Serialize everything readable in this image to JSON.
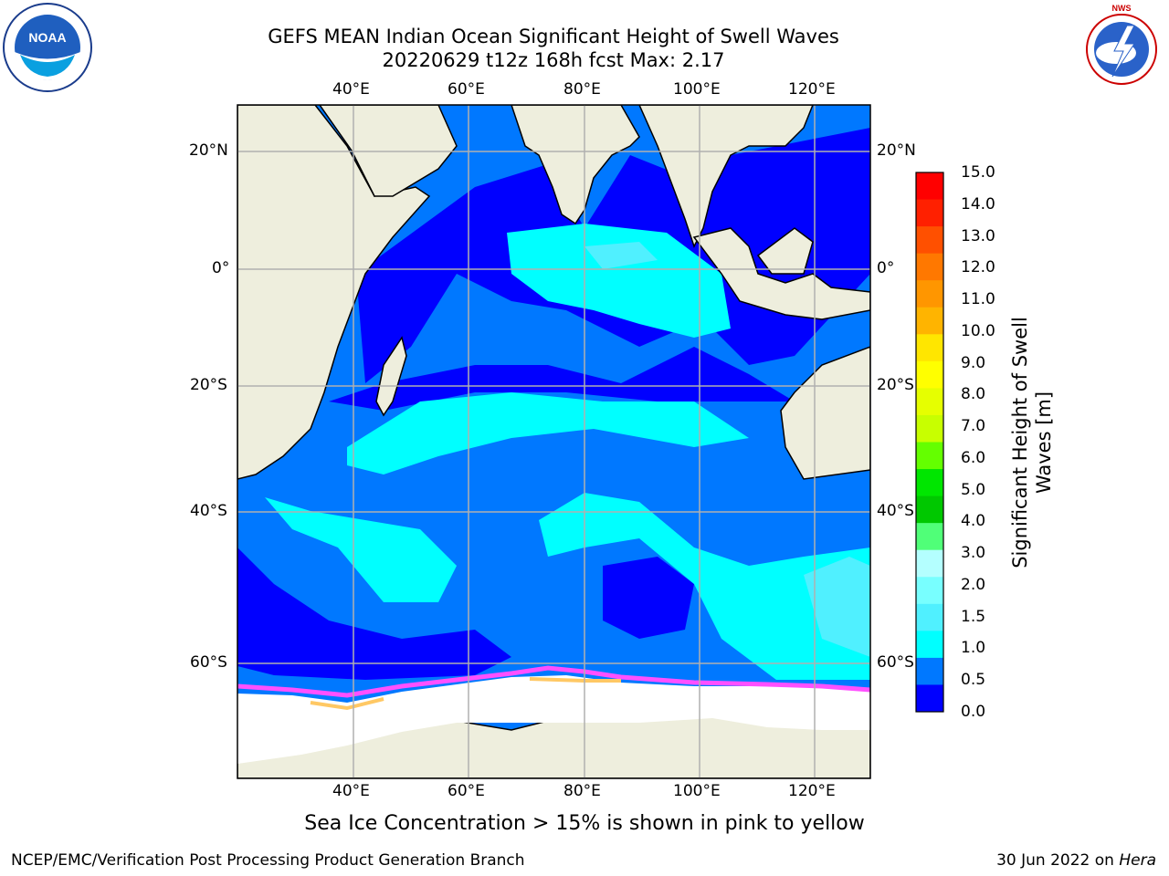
{
  "title": {
    "line1": "GEFS MEAN Indian Ocean Significant Height of Swell Waves",
    "line2": "20220629 t12z 168h fcst   Max: 2.17"
  },
  "logos": {
    "left": "noaa-logo",
    "right": "national-weather-service-logo",
    "left_text": "NOAA",
    "right_text": "NATIONAL WEATHER SERVICE"
  },
  "axes": {
    "lon_ticks": [
      "40°E",
      "60°E",
      "80°E",
      "100°E",
      "120°E"
    ],
    "lat_ticks": [
      "20°N",
      "0°",
      "20°S",
      "40°S",
      "60°S"
    ]
  },
  "colorbar": {
    "title_line1": "Significant Height of Swell",
    "title_line2": "Waves [m]",
    "labels": [
      "15.0",
      "14.0",
      "13.0",
      "12.0",
      "11.0",
      "10.0",
      "9.0",
      "8.0",
      "7.0",
      "6.0",
      "5.0",
      "4.0",
      "3.0",
      "2.0",
      "1.5",
      "1.0",
      "0.5",
      "0.0"
    ],
    "colors": [
      "#ff0000",
      "#ff2000",
      "#ff5000",
      "#ff7800",
      "#ff9600",
      "#ffb400",
      "#ffe600",
      "#ffff00",
      "#e6ff00",
      "#c8ff00",
      "#64ff00",
      "#00e600",
      "#00c800",
      "#50ff78",
      "#b4ffff",
      "#78ffff",
      "#50f0ff",
      "#00ffff",
      "#0078ff",
      "#0000ff"
    ]
  },
  "footnote": "Sea Ice Concentration > 15% is shown in pink to yellow",
  "credit_left": "NCEP/EMC/Verification Post Processing Product Generation Branch",
  "credit_right_prefix": "30 Jun 2022 on ",
  "credit_right_italic": "Hera"
}
